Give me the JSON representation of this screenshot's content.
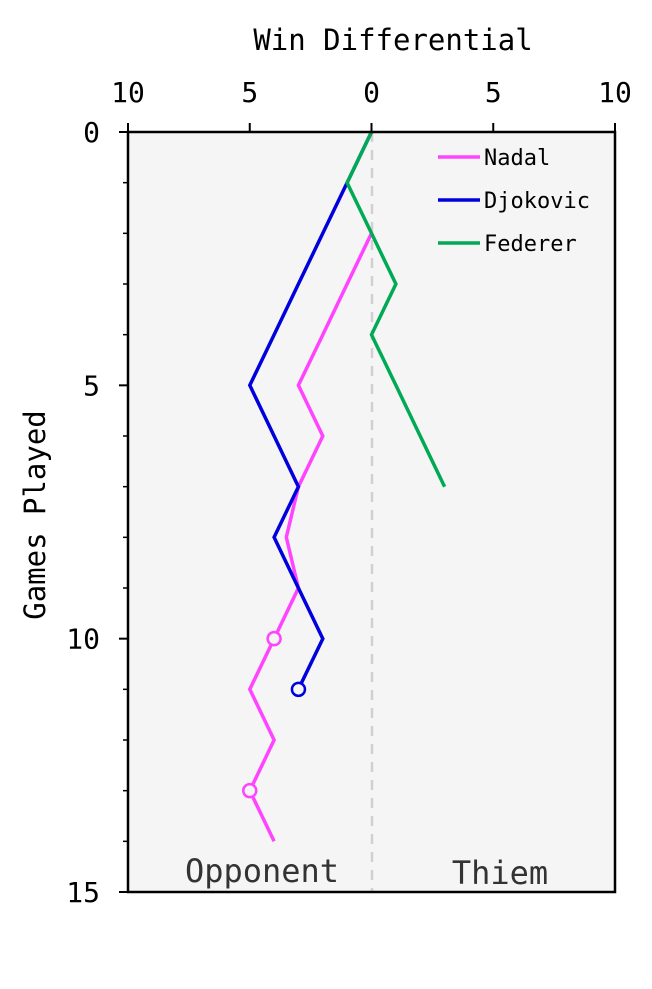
{
  "chart_data": {
    "type": "line",
    "xlabel": "Win Differential",
    "ylabel": "Games Played",
    "xlim": [
      -10,
      10
    ],
    "ylim": [
      0,
      15
    ],
    "x_ticks": [
      -10,
      -5,
      0,
      5,
      10
    ],
    "x_tick_labels": [
      "10",
      "5",
      "0",
      "5",
      "10"
    ],
    "y_ticks": [
      0,
      5,
      10,
      15
    ],
    "y_tick_labels": [
      "0",
      "5",
      "10",
      "15"
    ],
    "region_labels": {
      "left": "Opponent",
      "right": "Thiem"
    },
    "legend_position": "top-right",
    "reference_line_x": 0,
    "series": [
      {
        "name": "Nadal",
        "color": "#ff44ff",
        "points": [
          [
            0,
            2
          ],
          [
            -1,
            3
          ],
          [
            -2,
            4
          ],
          [
            -3,
            5
          ],
          [
            -2,
            6
          ],
          [
            -3,
            7
          ],
          [
            -3.5,
            8
          ],
          [
            -3,
            9
          ],
          [
            -4,
            10
          ],
          [
            -5,
            11
          ],
          [
            -4,
            12
          ],
          [
            -5,
            13
          ],
          [
            -4,
            14
          ]
        ],
        "markers": [
          [
            -4,
            10
          ],
          [
            -5,
            13
          ]
        ]
      },
      {
        "name": "Djokovic",
        "color": "#0000dd",
        "points": [
          [
            0,
            0
          ],
          [
            -1,
            1
          ],
          [
            -2,
            2
          ],
          [
            -3,
            3
          ],
          [
            -4,
            4
          ],
          [
            -5,
            5
          ],
          [
            -4,
            6
          ],
          [
            -3,
            7
          ],
          [
            -4,
            8
          ],
          [
            -3,
            9
          ],
          [
            -2,
            10
          ],
          [
            -3,
            11
          ]
        ],
        "markers": [
          [
            -3,
            11
          ]
        ]
      },
      {
        "name": "Federer",
        "color": "#00aa55",
        "points": [
          [
            0,
            0
          ],
          [
            -1,
            1
          ],
          [
            0,
            2
          ],
          [
            1,
            3
          ],
          [
            0,
            4
          ],
          [
            1,
            5
          ],
          [
            2,
            6
          ],
          [
            3,
            7
          ]
        ],
        "markers": []
      }
    ]
  }
}
